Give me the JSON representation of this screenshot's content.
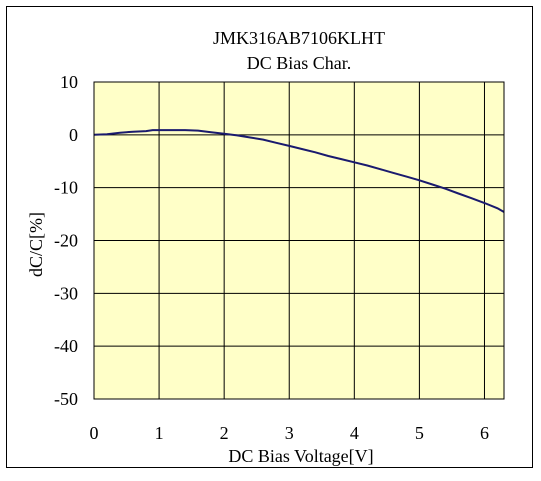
{
  "chart_data": {
    "type": "line",
    "title": "JMK316AB7106KLHT",
    "subtitle": "DC Bias Char.",
    "xlabel": "DC Bias Voltage[V]",
    "ylabel": "dC/C[%]",
    "xlim": [
      0,
      6.3
    ],
    "ylim": [
      -50,
      10
    ],
    "xticks": [
      0,
      1,
      2,
      3,
      4,
      5,
      6
    ],
    "yticks": [
      10,
      0,
      -10,
      -20,
      -30,
      -40,
      -50
    ],
    "grid": true,
    "legend": "none",
    "plot_background": "#ffffc8",
    "line_color": "#1a1a6e",
    "series": [
      {
        "x": [
          0,
          0.2,
          0.4,
          0.6,
          0.8,
          0.9,
          1.0,
          1.2,
          1.4,
          1.6,
          1.8,
          2.0,
          2.2,
          2.4,
          2.6,
          2.8,
          3.0,
          3.2,
          3.4,
          3.6,
          3.8,
          4.0,
          4.2,
          4.4,
          4.6,
          4.8,
          5.0,
          5.2,
          5.4,
          5.6,
          5.8,
          6.0,
          6.2,
          6.3
        ],
        "y": [
          0,
          0.1,
          0.4,
          0.6,
          0.7,
          0.9,
          0.9,
          0.9,
          0.9,
          0.8,
          0.5,
          0.2,
          -0.1,
          -0.5,
          -0.9,
          -1.5,
          -2.1,
          -2.7,
          -3.3,
          -4.0,
          -4.6,
          -5.2,
          -5.8,
          -6.5,
          -7.2,
          -7.9,
          -8.6,
          -9.4,
          -10.2,
          -11.1,
          -12.0,
          -12.9,
          -13.9,
          -14.6
        ]
      }
    ]
  }
}
